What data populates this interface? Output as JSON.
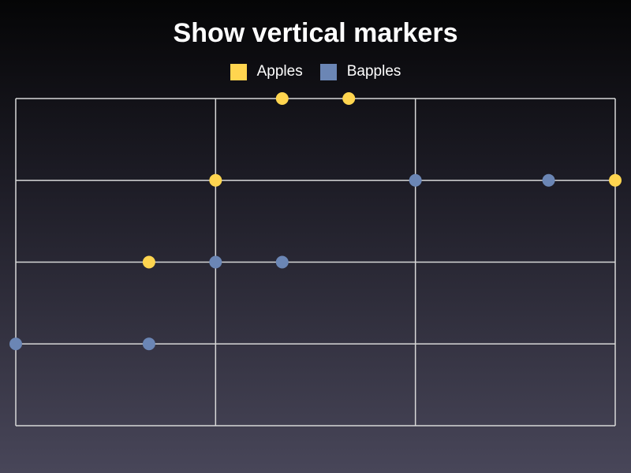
{
  "chart_data": {
    "type": "line",
    "title": "Show vertical markers",
    "x": [
      0,
      1,
      2,
      3,
      4,
      5,
      6,
      7,
      8,
      9
    ],
    "ylim": [
      0,
      4
    ],
    "xlim": [
      0,
      9
    ],
    "grid": true,
    "legend": "top",
    "series": [
      {
        "name": "Apples",
        "color": "#ffd54f",
        "values": [
          null,
          null,
          2,
          3,
          4,
          4,
          null,
          null,
          null,
          3
        ]
      },
      {
        "name": "Bapples",
        "color": "#6b86b5",
        "values": [
          1,
          null,
          1,
          2,
          2,
          null,
          3,
          null,
          3,
          null
        ]
      }
    ]
  }
}
